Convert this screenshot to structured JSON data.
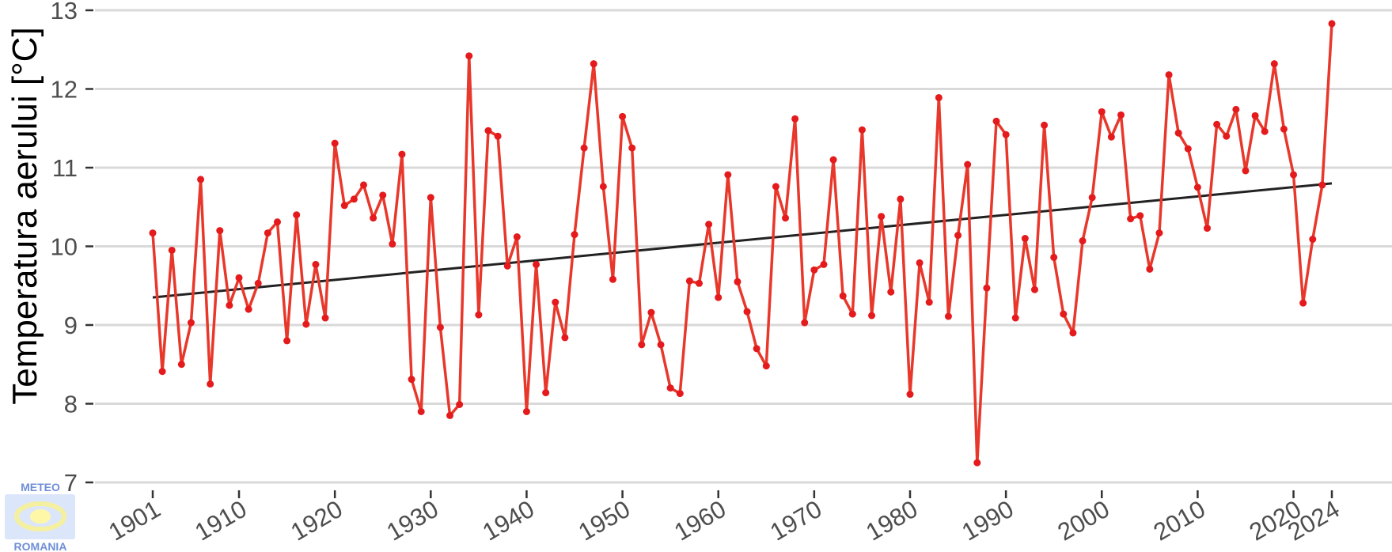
{
  "chart_data": {
    "type": "line",
    "title": "",
    "xlabel": "",
    "ylabel": "Temperatura aerului [°C]",
    "xlim": [
      1901,
      2024
    ],
    "ylim": [
      7,
      13
    ],
    "y_ticks": [
      7,
      8,
      9,
      10,
      11,
      12,
      13
    ],
    "x_ticks": [
      1901,
      1910,
      1920,
      1930,
      1940,
      1950,
      1960,
      1970,
      1980,
      1990,
      2000,
      2010,
      2020,
      2024
    ],
    "grid": true,
    "legend": "none",
    "colors": {
      "series": "#e8382b",
      "trend": "#222222",
      "grid": "#d9d9d9"
    },
    "series": [
      {
        "x_start": 1901,
        "values": [
          10.17,
          8.41,
          9.95,
          8.5,
          9.03,
          10.85,
          8.25,
          10.2,
          9.25,
          9.6,
          9.2,
          9.53,
          10.17,
          10.31,
          8.8,
          10.4,
          9.01,
          9.77,
          9.09,
          11.31,
          10.52,
          10.6,
          10.78,
          10.36,
          10.65,
          10.03,
          11.17,
          8.31,
          7.9,
          10.62,
          8.97,
          7.85,
          7.99,
          12.42,
          9.13,
          11.47,
          11.4,
          9.75,
          10.12,
          7.9,
          9.77,
          8.14,
          9.29,
          8.84,
          10.15,
          11.25,
          12.32,
          10.76,
          9.58,
          11.65,
          11.25,
          8.75,
          9.16,
          8.75,
          8.2,
          8.13,
          9.56,
          9.53,
          10.28,
          9.35,
          10.91,
          9.55,
          9.17,
          8.7,
          8.48,
          10.76,
          10.36,
          11.62,
          9.03,
          9.7,
          9.77,
          11.1,
          9.37,
          9.14,
          11.48,
          9.12,
          10.38,
          9.42,
          10.6,
          8.12,
          9.79,
          9.29,
          11.89,
          9.11,
          10.14,
          11.04,
          7.25,
          9.47,
          11.59,
          11.42,
          9.09,
          10.1,
          9.45,
          11.54,
          9.86,
          9.14,
          8.9,
          10.07,
          10.62,
          11.71,
          11.39,
          11.67,
          10.35,
          10.39,
          9.71,
          10.17,
          12.18,
          11.44,
          11.24,
          10.75,
          10.23,
          11.55,
          11.4,
          11.74,
          10.96,
          11.66,
          11.46,
          12.32,
          11.49,
          10.91,
          9.28,
          10.09,
          10.78,
          12.83
        ]
      }
    ],
    "trend_line": {
      "x": [
        1901,
        2024
      ],
      "y": [
        9.35,
        10.8
      ]
    }
  },
  "logo": {
    "top_text": "METEO",
    "bottom_text": "ROMANIA"
  }
}
